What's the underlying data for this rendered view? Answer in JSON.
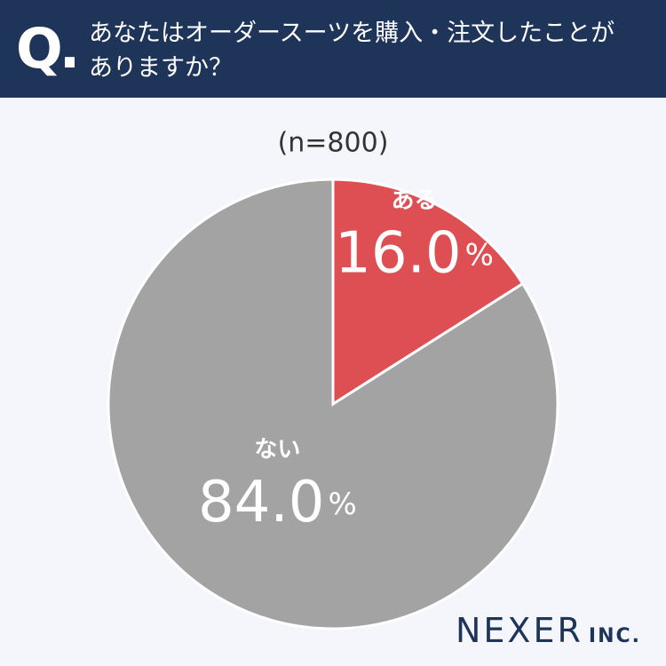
{
  "header": {
    "marker": "Q."
  },
  "chart_data": {
    "type": "pie",
    "title": "あなたはオーダースーツを購入・注文したことがありますか？",
    "subtitle": "(n=800)",
    "categories": [
      "ある",
      "ない"
    ],
    "values": [
      16.0,
      84.0
    ],
    "value_labels": [
      "16.0%",
      "84.0%"
    ],
    "colors": [
      "#dd4f53",
      "#a3a3a3"
    ]
  },
  "logo": {
    "name": "NEXER",
    "suffix": "INC."
  }
}
